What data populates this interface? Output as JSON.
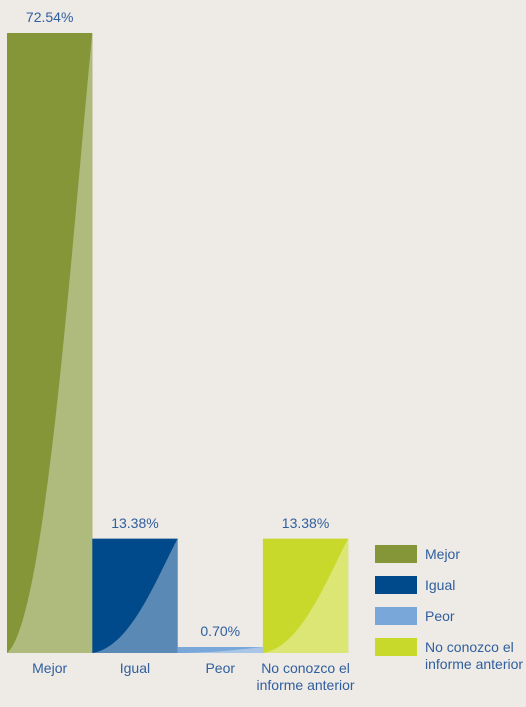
{
  "chart_data": {
    "type": "bar",
    "categories": [
      "Mejor",
      "Igual",
      "Peor",
      "No conozco el informe anterior"
    ],
    "values": [
      72.54,
      13.38,
      0.7,
      13.38
    ],
    "value_labels": [
      "72.54%",
      "13.38%",
      "0.70%",
      "13.38%"
    ],
    "colors": [
      "#849637",
      "#004a8c",
      "#7aa7d9",
      "#c8d92b"
    ],
    "legend": "right"
  }
}
